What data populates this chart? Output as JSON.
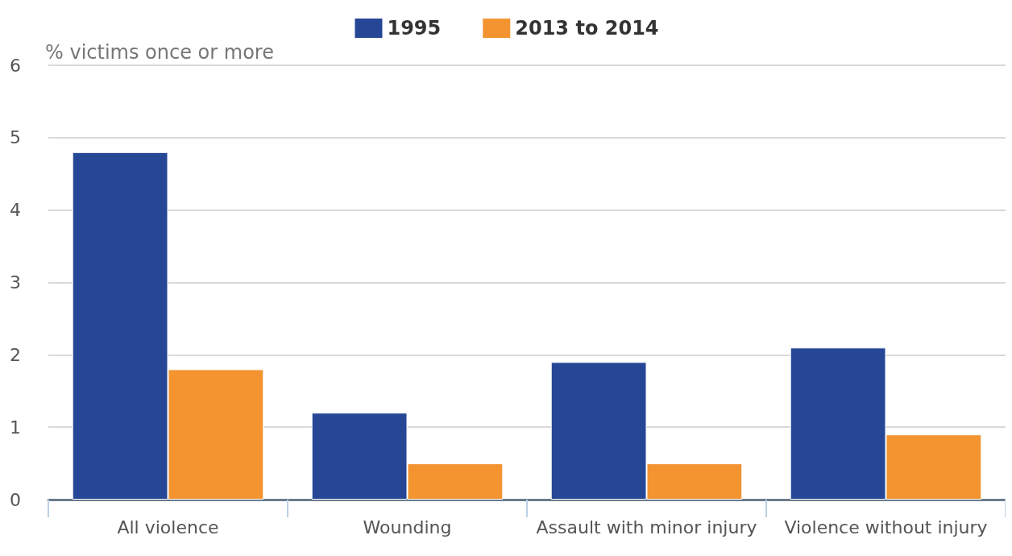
{
  "chart_data": {
    "type": "bar",
    "ylabel": "% victims once or more",
    "categories": [
      "All violence",
      "Wounding",
      "Assault with minor injury",
      "Violence without injury"
    ],
    "series": [
      {
        "name": "1995",
        "color": "#264796",
        "values": [
          4.8,
          1.2,
          1.9,
          2.1
        ]
      },
      {
        "name": "2013 to 2014",
        "color": "#f39431",
        "values": [
          1.8,
          0.5,
          0.5,
          0.9
        ]
      }
    ],
    "ylim": [
      0,
      6
    ],
    "yticks": [
      0,
      1,
      2,
      3,
      4,
      5,
      6
    ],
    "grid": "y",
    "legend": "top"
  }
}
